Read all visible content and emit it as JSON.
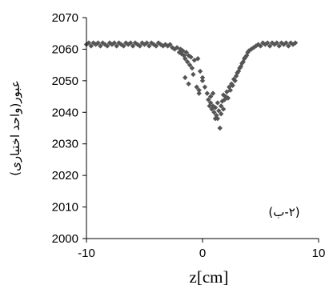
{
  "chart_data": {
    "type": "scatter",
    "title": "",
    "xlabel": "z[cm]",
    "ylabel": "عبور(واحد اختیاری)",
    "annotation": "(۲-ب)",
    "xlim": [
      -10,
      10
    ],
    "ylim": [
      2000,
      2070
    ],
    "x_ticks": [
      -10,
      0,
      10
    ],
    "y_ticks": [
      2000,
      2010,
      2020,
      2030,
      2040,
      2050,
      2060,
      2070
    ],
    "grid": false,
    "marker_color": "#555555",
    "series": [
      {
        "points": [
          [
            -10,
            2061.5
          ],
          [
            -9.8,
            2062
          ],
          [
            -9.6,
            2061
          ],
          [
            -9.4,
            2062
          ],
          [
            -9.2,
            2061.5
          ],
          [
            -9,
            2062
          ],
          [
            -8.8,
            2061
          ],
          [
            -8.6,
            2062
          ],
          [
            -8.4,
            2061.5
          ],
          [
            -8.2,
            2061
          ],
          [
            -8,
            2062
          ],
          [
            -7.8,
            2061.5
          ],
          [
            -7.6,
            2062
          ],
          [
            -7.4,
            2061
          ],
          [
            -7.2,
            2062
          ],
          [
            -7,
            2061.5
          ],
          [
            -6.8,
            2061
          ],
          [
            -6.6,
            2062
          ],
          [
            -6.4,
            2061.5
          ],
          [
            -6.2,
            2062
          ],
          [
            -6,
            2061
          ],
          [
            -5.8,
            2062
          ],
          [
            -5.6,
            2061.5
          ],
          [
            -5.4,
            2061
          ],
          [
            -5.2,
            2062
          ],
          [
            -5,
            2061.5
          ],
          [
            -4.8,
            2062
          ],
          [
            -4.6,
            2061
          ],
          [
            -4.4,
            2062
          ],
          [
            -4.2,
            2061.5
          ],
          [
            -4,
            2061
          ],
          [
            -3.8,
            2062
          ],
          [
            -3.6,
            2061.5
          ],
          [
            -3.4,
            2061
          ],
          [
            -3.2,
            2061.5
          ],
          [
            -3,
            2061
          ],
          [
            -2.8,
            2061.5
          ],
          [
            -2.6,
            2060.5
          ],
          [
            -2.4,
            2060
          ],
          [
            -2.2,
            2060.5
          ],
          [
            -2,
            2059
          ],
          [
            -1.9,
            2060
          ],
          [
            -1.8,
            2058.5
          ],
          [
            -1.7,
            2059.5
          ],
          [
            -1.6,
            2058
          ],
          [
            -1.5,
            2057
          ],
          [
            -1.4,
            2059
          ],
          [
            -1.3,
            2056
          ],
          [
            -1.2,
            2058
          ],
          [
            -1.1,
            2055
          ],
          [
            -1,
            2057.5
          ],
          [
            -1.5,
            2051
          ],
          [
            -1.2,
            2049
          ],
          [
            -0.8,
            2052
          ],
          [
            -0.5,
            2048
          ],
          [
            -0.3,
            2046
          ],
          [
            -0.9,
            2054
          ],
          [
            -0.7,
            2056.5
          ],
          [
            -0.4,
            2057
          ],
          [
            -0.2,
            2053
          ],
          [
            0,
            2051
          ],
          [
            -0.3,
            2047
          ],
          [
            0,
            2050
          ],
          [
            0.2,
            2048
          ],
          [
            0.4,
            2046
          ],
          [
            0.5,
            2044
          ],
          [
            0.6,
            2042
          ],
          [
            0.7,
            2043
          ],
          [
            0.8,
            2041
          ],
          [
            0.9,
            2042
          ],
          [
            1,
            2040
          ],
          [
            1.1,
            2041.5
          ],
          [
            1.2,
            2039
          ],
          [
            1.3,
            2038
          ],
          [
            1.4,
            2040.5
          ],
          [
            1.5,
            2035
          ],
          [
            1.6,
            2042
          ],
          [
            1.7,
            2043.5
          ],
          [
            1.8,
            2041
          ],
          [
            1.9,
            2044
          ],
          [
            2,
            2045
          ],
          [
            0.7,
            2045
          ],
          [
            0.9,
            2046
          ],
          [
            1.1,
            2038
          ],
          [
            1.3,
            2043
          ],
          [
            1.6,
            2039.5
          ],
          [
            1.8,
            2045.5
          ],
          [
            2.1,
            2046.5
          ],
          [
            2.2,
            2044.5
          ],
          [
            2.3,
            2048
          ],
          [
            2.4,
            2047
          ],
          [
            2.5,
            2049
          ],
          [
            2.6,
            2048.5
          ],
          [
            2.7,
            2050.5
          ],
          [
            2.8,
            2050
          ],
          [
            2.9,
            2051.5
          ],
          [
            3,
            2052.5
          ],
          [
            3.1,
            2053
          ],
          [
            3.2,
            2054
          ],
          [
            3.3,
            2054.5
          ],
          [
            3.4,
            2055.5
          ],
          [
            3.5,
            2056
          ],
          [
            3.6,
            2057
          ],
          [
            3.7,
            2057.5
          ],
          [
            3.8,
            2058
          ],
          [
            3.9,
            2059
          ],
          [
            4,
            2059.5
          ],
          [
            4.2,
            2060
          ],
          [
            4.4,
            2060.5
          ],
          [
            4.6,
            2061
          ],
          [
            4.8,
            2061.5
          ],
          [
            5,
            2061
          ],
          [
            5.2,
            2062
          ],
          [
            5.4,
            2061.5
          ],
          [
            5.6,
            2062
          ],
          [
            5.8,
            2061
          ],
          [
            6,
            2062
          ],
          [
            6.2,
            2061.5
          ],
          [
            6.4,
            2062
          ],
          [
            6.6,
            2061
          ],
          [
            6.8,
            2062
          ],
          [
            7,
            2061.5
          ],
          [
            7.2,
            2062
          ],
          [
            7.4,
            2061
          ],
          [
            7.6,
            2062
          ],
          [
            7.8,
            2061.5
          ],
          [
            8,
            2062
          ]
        ]
      }
    ]
  }
}
